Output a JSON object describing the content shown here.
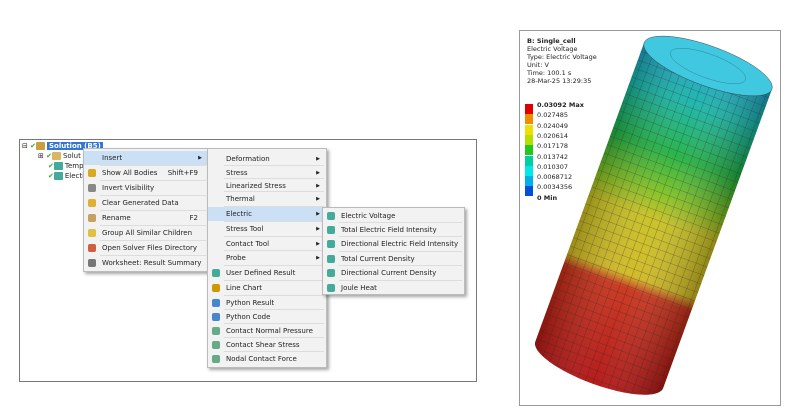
{
  "tree": {
    "root": "Solution (B5)",
    "children": [
      "Solut",
      "Temp",
      "Electi"
    ]
  },
  "context_menu": [
    {
      "label": "Insert",
      "submenu": true,
      "selected": true
    },
    {
      "label": "Show All Bodies",
      "shortcut": "Shift+F9",
      "icon": "bulb-icon"
    },
    {
      "label": "Invert Visibility",
      "icon": "bulb-outline-icon"
    },
    {
      "label": "Clear Generated Data",
      "icon": "eraser-icon"
    },
    {
      "label": "Rename",
      "shortcut": "F2",
      "icon": "rename-icon"
    },
    {
      "label": "Group All Similar Children",
      "icon": "folder-icon"
    },
    {
      "label": "Open Solver Files Directory",
      "icon": "open-folder-icon"
    },
    {
      "label": "Worksheet: Result Summary",
      "icon": "worksheet-icon"
    }
  ],
  "insert_menu": [
    {
      "label": "Deformation",
      "submenu": true
    },
    {
      "label": "Stress",
      "submenu": true
    },
    {
      "label": "Linearized Stress",
      "submenu": true
    },
    {
      "label": "Thermal",
      "submenu": true
    },
    {
      "label": "Electric",
      "submenu": true,
      "selected": true
    },
    {
      "label": "Stress Tool",
      "submenu": true
    },
    {
      "label": "Contact Tool",
      "submenu": true
    },
    {
      "label": "Probe",
      "submenu": true
    },
    {
      "label": "User Defined Result"
    },
    {
      "label": "Line Chart"
    },
    {
      "label": "Python Result"
    },
    {
      "label": "Python Code"
    },
    {
      "label": "Contact Normal Pressure"
    },
    {
      "label": "Contact Shear Stress"
    },
    {
      "label": "Nodal Contact Force"
    }
  ],
  "electric_menu": [
    "Electric Voltage",
    "Total Electric Field Intensity",
    "Directional Electric Field Intensity",
    "Total Current Density",
    "Directional Current Density",
    "Joule Heat"
  ],
  "viewer": {
    "title": "B: Single_cell",
    "lines": [
      "Electric Voltage",
      "Type: Electric Voltage",
      "Unit: V",
      "Time: 100.1 s",
      "28-Mar-25 13:29:35"
    ],
    "legend": {
      "labels": [
        "0.03092 Max",
        "0.027485",
        "0.024049",
        "0.020614",
        "0.017178",
        "0.013742",
        "0.010307",
        "0.0068712",
        "0.0034356",
        "0 Min"
      ],
      "colors": [
        "#e00000",
        "#f08c00",
        "#f0e000",
        "#b4e000",
        "#20c820",
        "#00d0a0",
        "#00e8e8",
        "#00b0e8",
        "#0050e0"
      ]
    }
  }
}
